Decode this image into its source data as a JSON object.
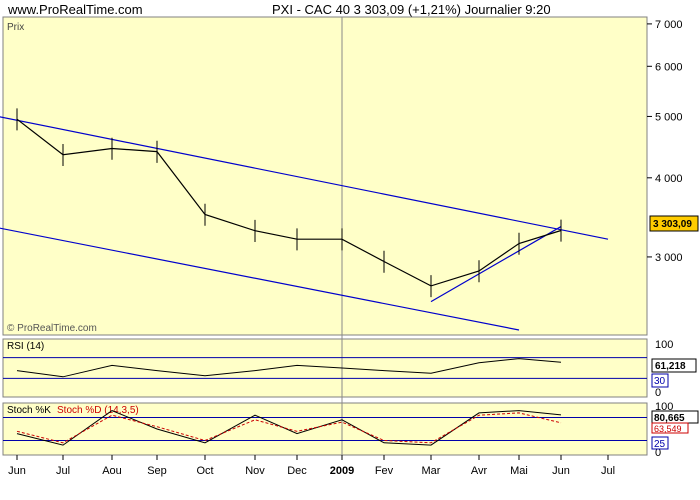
{
  "header": {
    "site": "www.ProRealTime.com",
    "title": "PXI - CAC 40   3 303,09 (+1,21%)   Journalier  9:20"
  },
  "price_panel": {
    "label": "Prix",
    "watermark": "© ProRealTime.com",
    "last_label": "3 303,09",
    "yticks": [
      "7 000",
      "6 000",
      "5 000",
      "4 000",
      "3 000"
    ]
  },
  "rsi_panel": {
    "label": "RSI (14)",
    "ticks": [
      "100",
      "0"
    ],
    "last_label": "61,218",
    "level_label": "30"
  },
  "stoch_panel": {
    "label_k": "Stoch %K",
    "label_d": "Stoch %D (14,3,5)",
    "ticks": [
      "100",
      "0"
    ],
    "last_k_label": "80,665",
    "last_d_label": "63,549",
    "level_label": "25"
  },
  "xaxis": {
    "months": [
      "Jun",
      "Jul",
      "Aou",
      "Sep",
      "Oct",
      "Nov",
      "Dec",
      "2009",
      "Fev",
      "Mar",
      "Avr",
      "Mai",
      "Jun",
      "Jul"
    ]
  },
  "colors": {
    "panel_bg": "#ffffc8",
    "trend_line": "#0000cc",
    "level_line": "#0000aa",
    "price_tag_bg": "#ffcc00",
    "stoch_d": "#cc0000"
  },
  "chart_data": [
    {
      "type": "line",
      "name": "PXI - CAC 40 daily",
      "x": [
        "2008-06",
        "2008-07",
        "2008-08",
        "2008-09",
        "2008-10",
        "2008-11",
        "2008-12",
        "2009-01",
        "2009-02",
        "2009-03",
        "2009-04",
        "2009-05",
        "2009-06"
      ],
      "y": [
        4950,
        4350,
        4450,
        4400,
        3500,
        3300,
        3200,
        3200,
        2950,
        2700,
        2850,
        3150,
        3303.09
      ],
      "ylim": [
        2300,
        7100
      ],
      "yscale": "log",
      "trendlines": [
        {
          "x": [
            "2008-05",
            "2009-07"
          ],
          "y": [
            5100,
            3200
          ]
        },
        {
          "x": [
            "2008-05",
            "2009-05"
          ],
          "y": [
            3400,
            2300
          ]
        },
        {
          "x": [
            "2009-03",
            "2009-06"
          ],
          "y": [
            2550,
            3350
          ]
        }
      ]
    },
    {
      "type": "line",
      "name": "RSI (14)",
      "x": [
        "2008-06",
        "2008-07",
        "2008-08",
        "2008-09",
        "2008-10",
        "2008-11",
        "2008-12",
        "2009-01",
        "2009-02",
        "2009-03",
        "2009-04",
        "2009-05",
        "2009-06"
      ],
      "y": [
        45,
        33,
        55,
        45,
        35,
        45,
        55,
        50,
        45,
        40,
        60,
        68,
        61.218
      ],
      "ylim": [
        0,
        100
      ],
      "levels": [
        70,
        30
      ]
    },
    {
      "type": "line",
      "name": "Stoch %K / %D (14,3,5)",
      "x": [
        "2008-06",
        "2008-07",
        "2008-08",
        "2008-09",
        "2008-10",
        "2008-11",
        "2008-12",
        "2009-01",
        "2009-02",
        "2009-03",
        "2009-04",
        "2009-05",
        "2009-06"
      ],
      "series": [
        {
          "name": "Stoch %K",
          "values": [
            40,
            15,
            90,
            50,
            20,
            80,
            40,
            70,
            20,
            15,
            85,
            90,
            80.665
          ]
        },
        {
          "name": "Stoch %D",
          "values": [
            45,
            20,
            80,
            55,
            25,
            70,
            45,
            65,
            25,
            20,
            80,
            85,
            63.549
          ]
        }
      ],
      "ylim": [
        0,
        100
      ],
      "levels": [
        75,
        25
      ]
    }
  ]
}
